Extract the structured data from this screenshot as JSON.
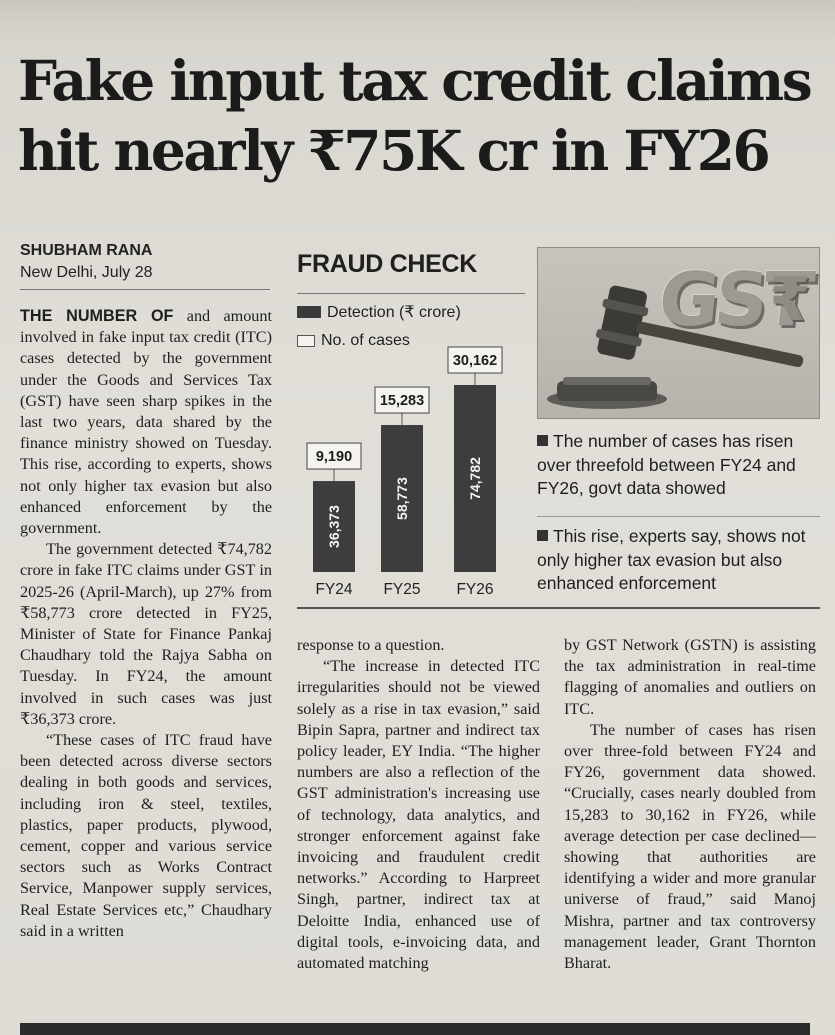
{
  "headline": "Fake input tax credit claims hit nearly ₹75K cr in FY26",
  "byline": {
    "author": "SHUBHAM RANA",
    "dateline": "New Delhi, July 28"
  },
  "box_title": "FRAUD CHECK",
  "legend": {
    "detection": "Detection (₹ crore)",
    "cases": "No. of cases"
  },
  "chart_data": {
    "type": "bar",
    "title": "FRAUD CHECK",
    "categories": [
      "FY24",
      "FY25",
      "FY26"
    ],
    "series": [
      {
        "name": "Detection (₹ crore)",
        "values": [
          36373,
          58773,
          74782
        ],
        "labels": [
          "36,373",
          "58,773",
          "74,782"
        ]
      },
      {
        "name": "No. of cases",
        "values": [
          9190,
          15283,
          30162
        ],
        "labels": [
          "9,190",
          "15,283",
          "30,162"
        ]
      }
    ],
    "colors": {
      "bar": "#3d3d3d",
      "label_box": "#f4f3ee"
    }
  },
  "captions": [
    "The number of cases has risen over threefold between FY24 and FY26, govt data showed",
    "This rise, experts say, shows not only higher tax evasion but also enhanced enforcement"
  ],
  "photo": {
    "logo_text": "GST",
    "icon": "gavel-icon"
  },
  "body": {
    "col1": [
      {
        "lead": "THE NUMBER OF",
        "text": " and amount involved in fake input tax credit (ITC) cases detected by the government under the Goods and Services Tax (GST) have seen sharp spikes in the last two years, data shared by the finance ministry showed on Tuesday. This rise, according to experts, shows not only higher tax evasion but also enhanced enforcement by the government."
      },
      {
        "text": "The government detected ₹74,782 crore in fake ITC claims under GST in 2025-26 (April-March), up 27% from ₹58,773 crore detected in FY25, Minister of State for Finance Pankaj Chaudhary told the Rajya Sabha on Tuesday. In FY24, the amount involved in such cases was just ₹36,373 crore."
      },
      {
        "text": "“These cases of ITC fraud have been detected across diverse sectors dealing in both goods and services, including iron & steel, textiles, plastics, paper products, plywood, cement, copper and various service sectors such as Works Contract Service, Manpower supply services, Real Estate Services etc,” Chaudhary said in a written"
      }
    ],
    "col2": [
      {
        "text": "response to a question."
      },
      {
        "text": "“The increase in detected ITC irregularities should not be viewed solely as a rise in tax evasion,” said Bipin Sapra, partner and indirect tax policy leader, EY India. “The higher numbers are also a reflection of the GST administration's increasing use of technology, data analytics, and stronger enforcement against fake invoicing and fraudulent credit networks.” According to Harpreet Singh, partner, indirect tax at Deloitte India, enhanced use of digital tools, e-invoicing data, and automated matching"
      }
    ],
    "col3": [
      {
        "text": "by GST Network (GSTN) is assisting the tax administration in real-time flagging of anomalies and outliers on ITC."
      },
      {
        "text": "The number of cases has risen over three-fold between FY24 and FY26, government data showed. “Crucially, cases nearly doubled from 15,283 to 30,162 in FY26, while average detection per case declined—showing that authorities are identifying a wider and more granular universe of fraud,” said Manoj Mishra, partner and tax controversy management leader, Grant Thornton Bharat."
      }
    ]
  }
}
